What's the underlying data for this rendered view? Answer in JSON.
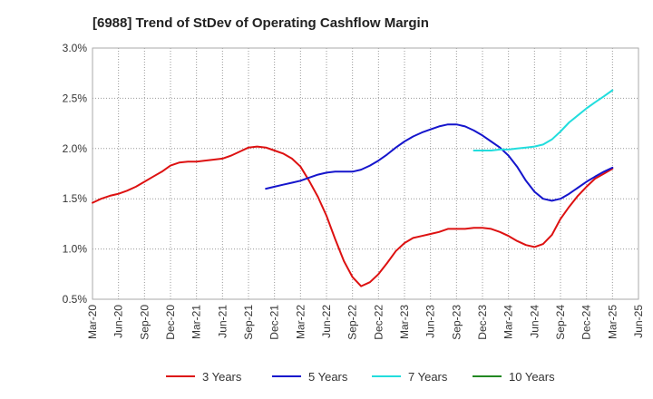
{
  "chart_data": {
    "type": "line",
    "title": "[6988]  Trend of StDev of Operating Cashflow Margin",
    "xlabel": "",
    "ylabel": "",
    "x_ticks": [
      "Mar-20",
      "Jun-20",
      "Sep-20",
      "Dec-20",
      "Mar-21",
      "Jun-21",
      "Sep-21",
      "Dec-21",
      "Mar-22",
      "Jun-22",
      "Sep-22",
      "Dec-22",
      "Mar-23",
      "Jun-23",
      "Sep-23",
      "Dec-23",
      "Mar-24",
      "Jun-24",
      "Sep-24",
      "Dec-24",
      "Mar-25",
      "Jun-25"
    ],
    "y_ticks": [
      "0.5%",
      "1.0%",
      "1.5%",
      "2.0%",
      "2.5%",
      "3.0%"
    ],
    "ylim": [
      0.5,
      3.0
    ],
    "grid": true,
    "legend_position": "bottom",
    "series": [
      {
        "name": "3 Years",
        "color": "#dd1111",
        "x": [
          0,
          0.33,
          0.67,
          1,
          1.33,
          1.67,
          2,
          2.33,
          2.67,
          3,
          3.33,
          3.67,
          4,
          4.33,
          4.67,
          5,
          5.33,
          5.67,
          6,
          6.33,
          6.67,
          7,
          7.33,
          7.67,
          8,
          8.33,
          8.67,
          9,
          9.33,
          9.67,
          10,
          10.33,
          10.67,
          11,
          11.33,
          11.67,
          12,
          12.33,
          12.67,
          13,
          13.33,
          13.67,
          14,
          14.33,
          14.67,
          15,
          15.33,
          15.67,
          16,
          16.33,
          16.67,
          17,
          17.33,
          17.67,
          18,
          18.33,
          18.67,
          19,
          19.33,
          19.67,
          20
        ],
        "values": [
          1.46,
          1.5,
          1.53,
          1.55,
          1.58,
          1.62,
          1.67,
          1.72,
          1.77,
          1.83,
          1.86,
          1.87,
          1.87,
          1.88,
          1.89,
          1.9,
          1.93,
          1.97,
          2.01,
          2.02,
          2.01,
          1.98,
          1.95,
          1.9,
          1.82,
          1.68,
          1.52,
          1.33,
          1.1,
          0.88,
          0.72,
          0.63,
          0.67,
          0.75,
          0.86,
          0.98,
          1.06,
          1.11,
          1.13,
          1.15,
          1.17,
          1.2,
          1.2,
          1.2,
          1.21,
          1.21,
          1.2,
          1.17,
          1.13,
          1.08,
          1.04,
          1.02,
          1.05,
          1.14,
          1.3,
          1.42,
          1.53,
          1.62,
          1.7,
          1.75,
          1.8
        ]
      },
      {
        "name": "5 Years",
        "color": "#1515cc",
        "x": [
          6.67,
          7,
          7.33,
          7.67,
          8,
          8.33,
          8.67,
          9,
          9.33,
          9.67,
          10,
          10.33,
          10.67,
          11,
          11.33,
          11.67,
          12,
          12.33,
          12.67,
          13,
          13.33,
          13.67,
          14,
          14.33,
          14.67,
          15,
          15.33,
          15.67,
          16,
          16.33,
          16.67,
          17,
          17.33,
          17.67,
          18,
          18.33,
          18.67,
          19,
          19.33,
          19.67,
          20
        ],
        "values": [
          1.6,
          1.62,
          1.64,
          1.66,
          1.68,
          1.71,
          1.74,
          1.76,
          1.77,
          1.77,
          1.77,
          1.79,
          1.83,
          1.88,
          1.94,
          2.01,
          2.07,
          2.12,
          2.16,
          2.19,
          2.22,
          2.24,
          2.24,
          2.22,
          2.18,
          2.13,
          2.07,
          2.01,
          1.93,
          1.82,
          1.68,
          1.57,
          1.5,
          1.48,
          1.5,
          1.55,
          1.61,
          1.67,
          1.72,
          1.77,
          1.81
        ]
      },
      {
        "name": "7 Years",
        "color": "#22dddd",
        "x": [
          14.67,
          15,
          15.33,
          15.67,
          16,
          16.33,
          16.67,
          17,
          17.33,
          17.67,
          18,
          18.33,
          18.67,
          19,
          19.33,
          19.67,
          20
        ],
        "values": [
          1.98,
          1.98,
          1.98,
          1.99,
          1.99,
          2.0,
          2.01,
          2.02,
          2.04,
          2.09,
          2.17,
          2.26,
          2.33,
          2.4,
          2.46,
          2.52,
          2.58
        ]
      },
      {
        "name": "10 Years",
        "color": "#228822",
        "x": [],
        "values": []
      }
    ]
  }
}
